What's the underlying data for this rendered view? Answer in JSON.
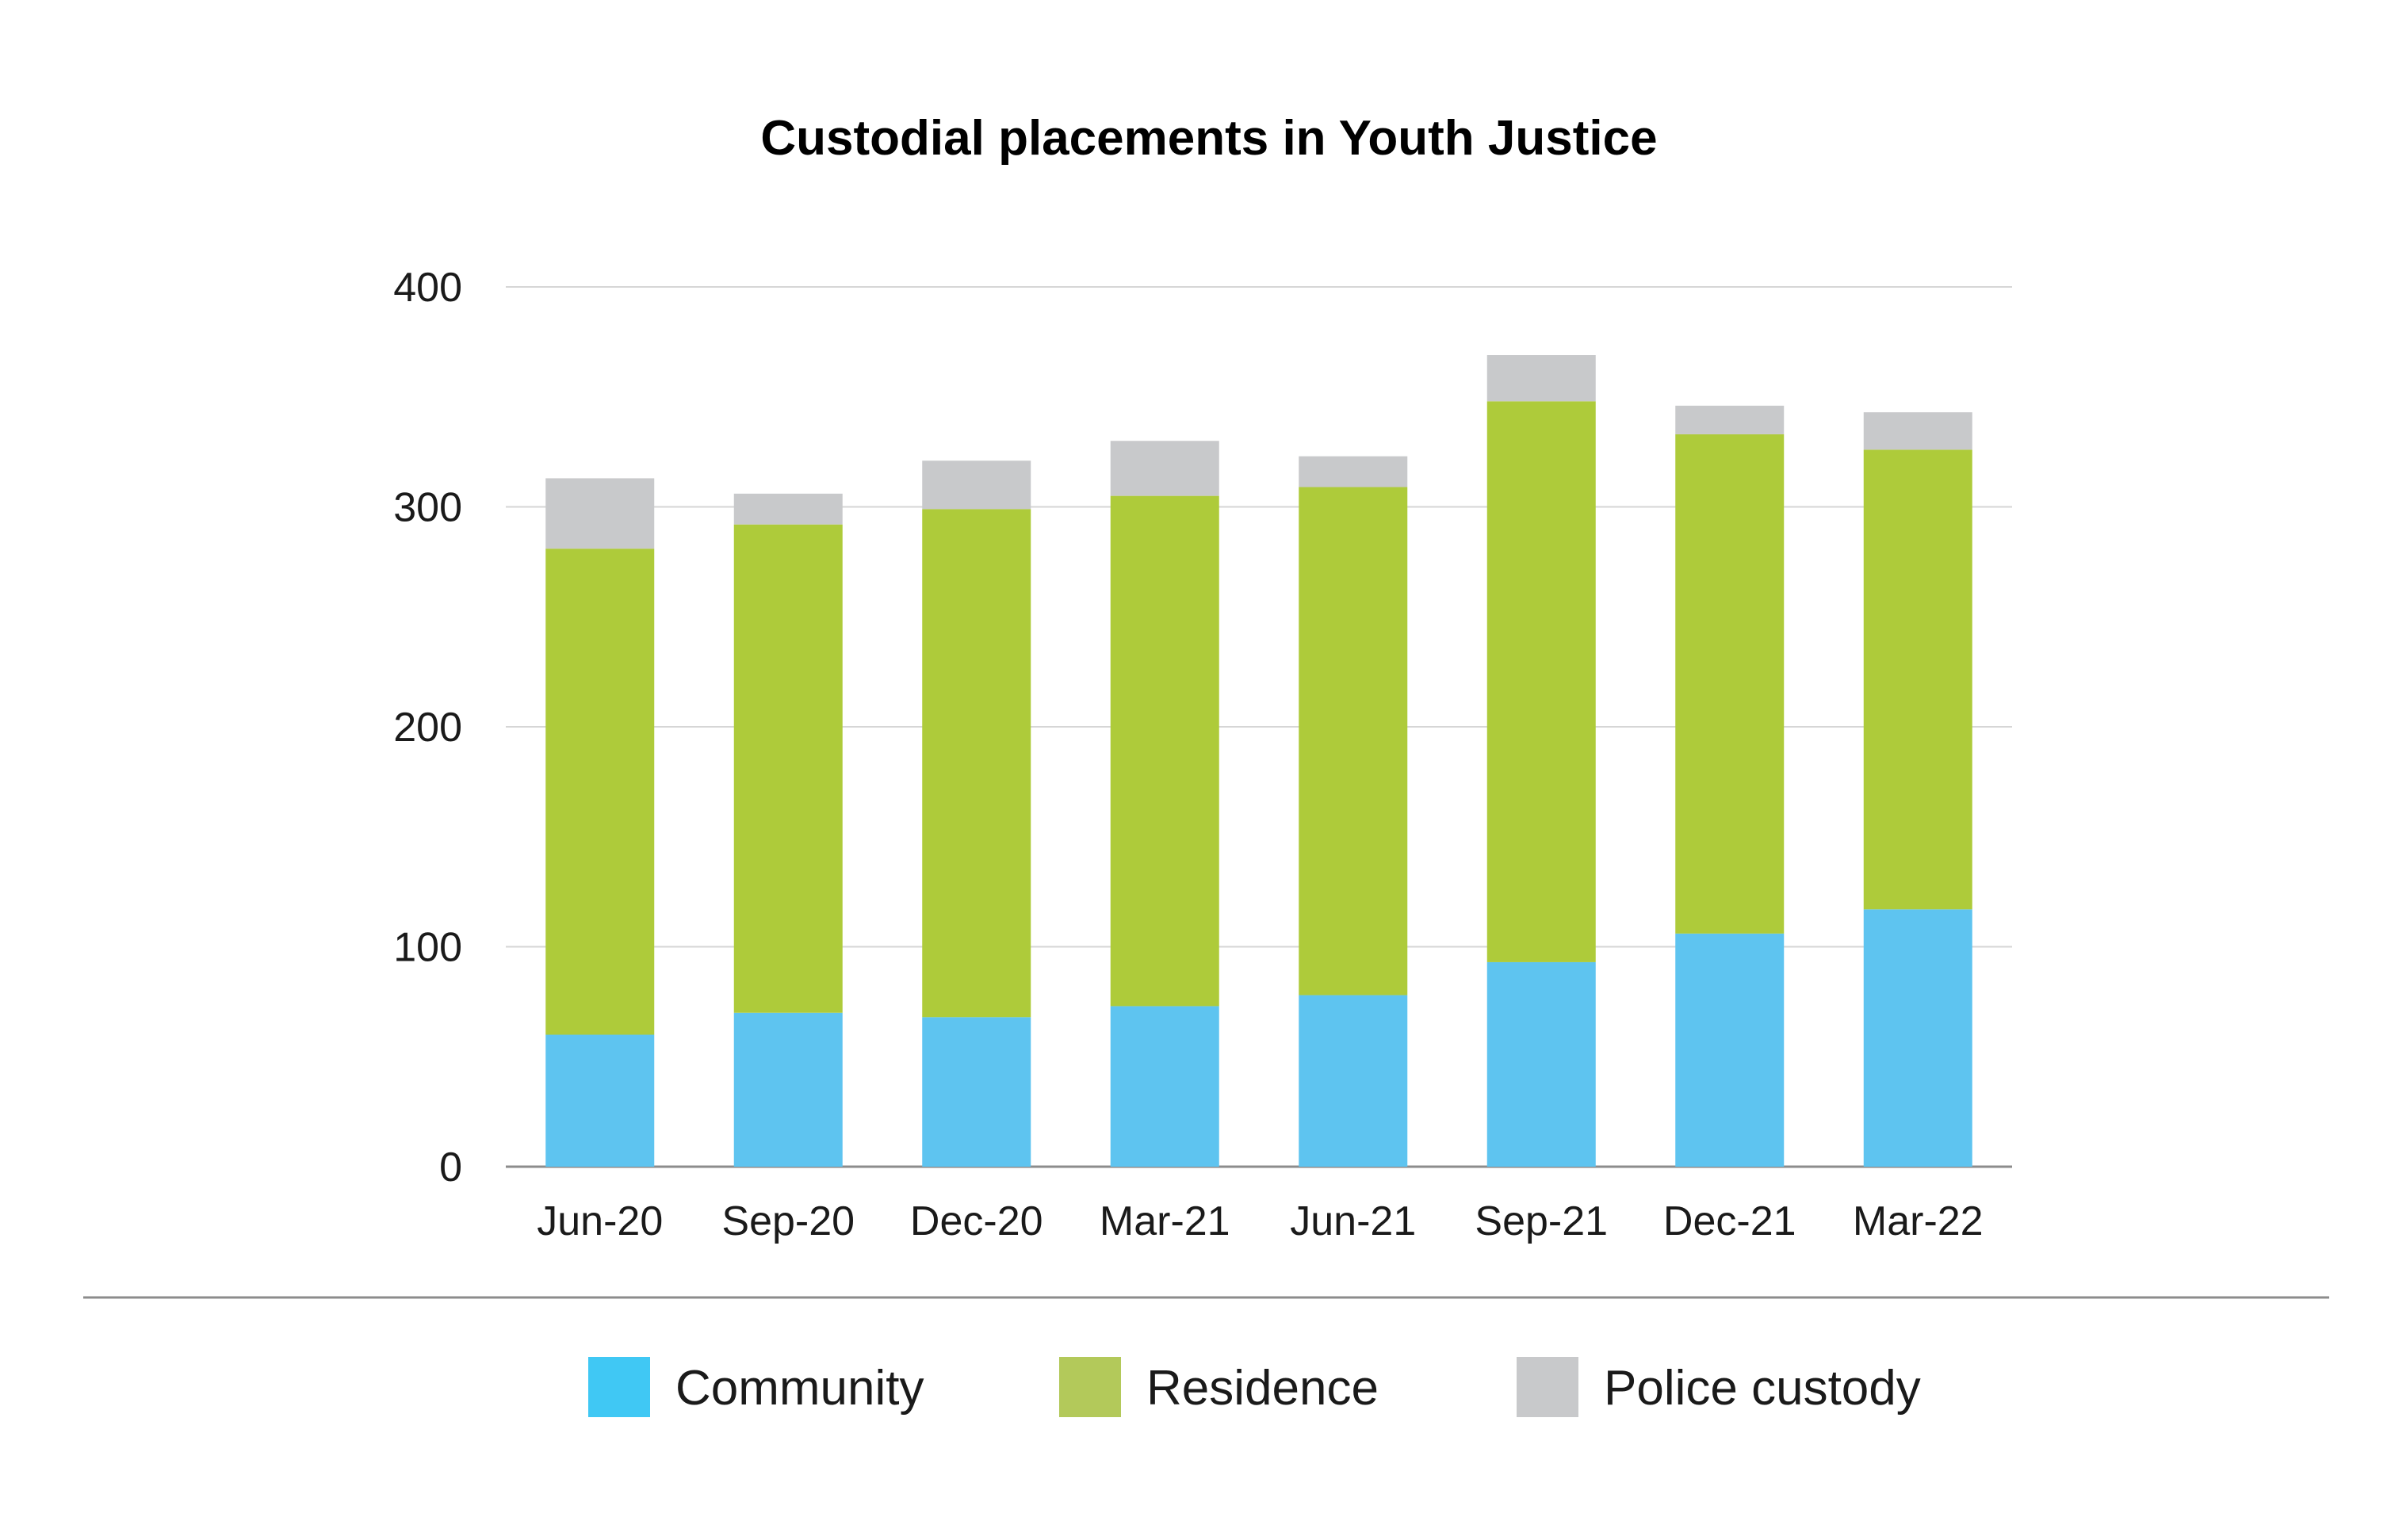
{
  "chart_data": {
    "type": "bar",
    "stacked": true,
    "title": "Custodial placements in Youth Justice",
    "xlabel": "",
    "ylabel": "",
    "categories": [
      "Jun-20",
      "Sep-20",
      "Dec-20",
      "Mar-21",
      "Jun-21",
      "Sep-21",
      "Dec-21",
      "Mar-22"
    ],
    "series": [
      {
        "name": "Community",
        "color": "#5EC4F0",
        "legend_color": "#40C8F4",
        "values": [
          60,
          70,
          68,
          73,
          78,
          93,
          106,
          117
        ]
      },
      {
        "name": "Residence",
        "color": "#AECB3A",
        "legend_color": "#B3C95A",
        "values": [
          221,
          222,
          231,
          232,
          231,
          255,
          227,
          209
        ]
      },
      {
        "name": "Police custody",
        "color": "#C8C9CB",
        "legend_color": "#C8C9CB",
        "values": [
          32,
          14,
          22,
          25,
          14,
          21,
          13,
          17
        ]
      }
    ],
    "ylim": [
      0,
      400
    ],
    "yticks": [
      0,
      100,
      200,
      300,
      400
    ],
    "grid": true,
    "legend_position": "bottom"
  }
}
